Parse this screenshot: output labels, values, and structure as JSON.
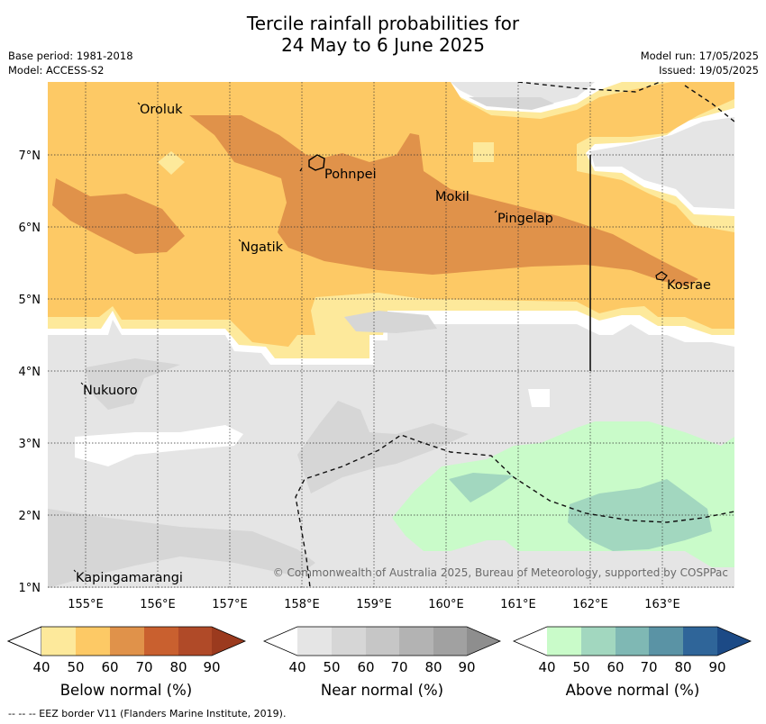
{
  "title": {
    "line1": "Tercile rainfall probabilities for",
    "line2": "24 May to 6 June 2025"
  },
  "meta_left": {
    "base_period": "Base period: 1981-2018",
    "model": "Model: ACCESS-S2"
  },
  "meta_right": {
    "model_run": "Model run: 17/05/2025",
    "issued": "Issued: 19/05/2025"
  },
  "axes": {
    "lon_ticks": [
      "155°E",
      "156°E",
      "157°E",
      "158°E",
      "159°E",
      "160°E",
      "161°E",
      "162°E",
      "163°E"
    ],
    "lat_ticks": [
      "1°N",
      "2°N",
      "3°N",
      "4°N",
      "5°N",
      "6°N",
      "7°N"
    ]
  },
  "places": [
    "Oroluk",
    "Pohnpei",
    "Mokil",
    "Pingelap",
    "Ngatik",
    "Kosrae",
    "Nukuoro",
    "Kapingamarangi"
  ],
  "copyright": "© Commonwealth of Australia 2025, Bureau of Meteorology, supported by COSPPac",
  "colorbars": [
    {
      "label": "Below normal (%)",
      "ticks": [
        "40",
        "50",
        "60",
        "70",
        "80",
        "90"
      ],
      "colors": [
        "#fde99b",
        "#fdc965",
        "#e0924a",
        "#c9602f",
        "#b04a28",
        "#9b3a1e"
      ]
    },
    {
      "label": "Near normal (%)",
      "ticks": [
        "40",
        "50",
        "60",
        "70",
        "80",
        "90"
      ],
      "colors": [
        "#e5e5e5",
        "#d6d6d6",
        "#c6c6c6",
        "#b3b3b3",
        "#a1a1a1",
        "#8e8e8e"
      ]
    },
    {
      "label": "Above normal (%)",
      "ticks": [
        "40",
        "50",
        "60",
        "70",
        "80",
        "90"
      ],
      "colors": [
        "#c9fbc9",
        "#a2d7bf",
        "#7fb8b4",
        "#5a93a5",
        "#2f6599",
        "#1c4a86"
      ]
    }
  ],
  "eez_legend": "--  --  -- EEZ border V11 (Flanders Marine Institute, 2019).",
  "map_colors": {
    "bn_40": "#fde99b",
    "bn_50": "#fdc965",
    "bn_60": "#e0924a",
    "nn_40": "#e5e5e5",
    "nn_50": "#d6d6d6",
    "an_40": "#c9fbc9",
    "an_50": "#a2d7bf"
  }
}
